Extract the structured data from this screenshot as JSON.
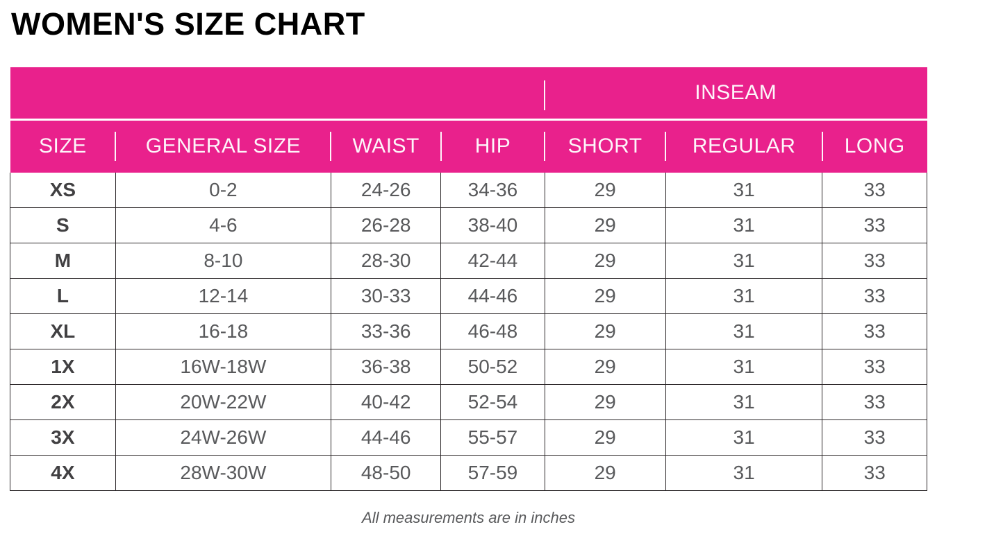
{
  "page": {
    "title": "WOMEN'S SIZE CHART",
    "footnote": "All measurements are in inches"
  },
  "colors": {
    "accent_pink": "#E9218C",
    "header_text": "#FDF5FA",
    "grid_line": "#2B2628",
    "body_text": "#58595B",
    "size_column_text": "#414042",
    "title_text": "#000000"
  },
  "table": {
    "inseam_group_label": "INSEAM",
    "columns": [
      "SIZE",
      "GENERAL SIZE",
      "WAIST",
      "HIP",
      "SHORT",
      "REGULAR",
      "LONG"
    ],
    "rows": [
      {
        "size": "XS",
        "general_size": "0-2",
        "waist": "24-26",
        "hip": "34-36",
        "short": "29",
        "regular": "31",
        "long": "33"
      },
      {
        "size": "S",
        "general_size": "4-6",
        "waist": "26-28",
        "hip": "38-40",
        "short": "29",
        "regular": "31",
        "long": "33"
      },
      {
        "size": "M",
        "general_size": "8-10",
        "waist": "28-30",
        "hip": "42-44",
        "short": "29",
        "regular": "31",
        "long": "33"
      },
      {
        "size": "L",
        "general_size": "12-14",
        "waist": "30-33",
        "hip": "44-46",
        "short": "29",
        "regular": "31",
        "long": "33"
      },
      {
        "size": "XL",
        "general_size": "16-18",
        "waist": "33-36",
        "hip": "46-48",
        "short": "29",
        "regular": "31",
        "long": "33"
      },
      {
        "size": "1X",
        "general_size": "16W-18W",
        "waist": "36-38",
        "hip": "50-52",
        "short": "29",
        "regular": "31",
        "long": "33"
      },
      {
        "size": "2X",
        "general_size": "20W-22W",
        "waist": "40-42",
        "hip": "52-54",
        "short": "29",
        "regular": "31",
        "long": "33"
      },
      {
        "size": "3X",
        "general_size": "24W-26W",
        "waist": "44-46",
        "hip": "55-57",
        "short": "29",
        "regular": "31",
        "long": "33"
      },
      {
        "size": "4X",
        "general_size": "28W-30W",
        "waist": "48-50",
        "hip": "57-59",
        "short": "29",
        "regular": "31",
        "long": "33"
      }
    ]
  }
}
